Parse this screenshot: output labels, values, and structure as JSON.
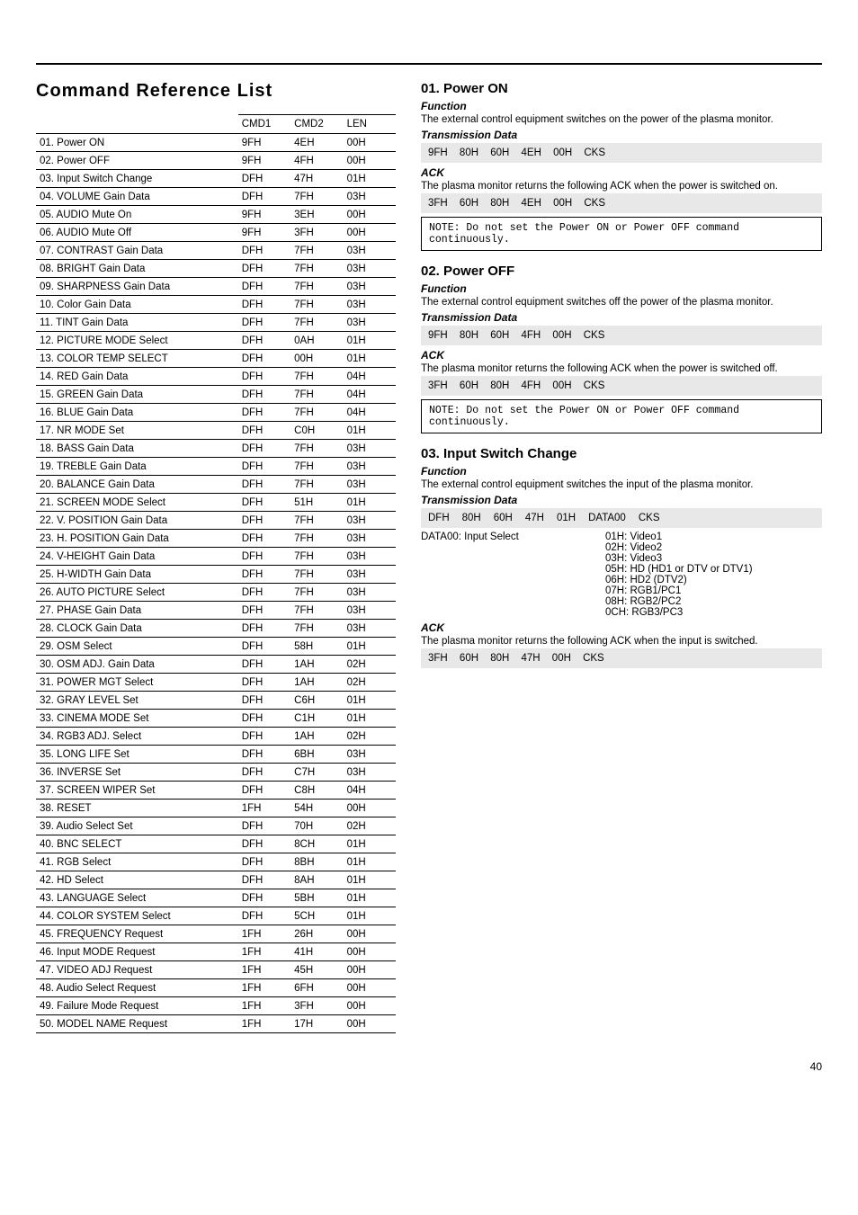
{
  "title": "Command Reference List",
  "table": {
    "headers": [
      "",
      "CMD1",
      "CMD2",
      "LEN"
    ],
    "rows": [
      [
        "01. Power ON",
        "9FH",
        "4EH",
        "00H"
      ],
      [
        "02. Power OFF",
        "9FH",
        "4FH",
        "00H"
      ],
      [
        "03. Input Switch Change",
        "DFH",
        "47H",
        "01H"
      ],
      [
        "04. VOLUME Gain Data",
        "DFH",
        "7FH",
        "03H"
      ],
      [
        "05. AUDIO Mute On",
        "9FH",
        "3EH",
        "00H"
      ],
      [
        "06. AUDIO Mute Off",
        "9FH",
        "3FH",
        "00H"
      ],
      [
        "07. CONTRAST Gain Data",
        "DFH",
        "7FH",
        "03H"
      ],
      [
        "08. BRIGHT Gain Data",
        "DFH",
        "7FH",
        "03H"
      ],
      [
        "09. SHARPNESS Gain Data",
        "DFH",
        "7FH",
        "03H"
      ],
      [
        "10. Color Gain Data",
        "DFH",
        "7FH",
        "03H"
      ],
      [
        "11. TINT Gain Data",
        "DFH",
        "7FH",
        "03H"
      ],
      [
        "12. PICTURE MODE Select",
        "DFH",
        "0AH",
        "01H"
      ],
      [
        "13. COLOR TEMP SELECT",
        "DFH",
        "00H",
        "01H"
      ],
      [
        "14. RED Gain Data",
        "DFH",
        "7FH",
        "04H"
      ],
      [
        "15. GREEN Gain Data",
        "DFH",
        "7FH",
        "04H"
      ],
      [
        "16. BLUE Gain Data",
        "DFH",
        "7FH",
        "04H"
      ],
      [
        "17. NR MODE Set",
        "DFH",
        "C0H",
        "01H"
      ],
      [
        "18. BASS Gain Data",
        "DFH",
        "7FH",
        "03H"
      ],
      [
        "19. TREBLE Gain Data",
        "DFH",
        "7FH",
        "03H"
      ],
      [
        "20. BALANCE Gain Data",
        "DFH",
        "7FH",
        "03H"
      ],
      [
        "21. SCREEN MODE Select",
        "DFH",
        "51H",
        "01H"
      ],
      [
        "22. V. POSITION Gain Data",
        "DFH",
        "7FH",
        "03H"
      ],
      [
        "23. H. POSITION Gain Data",
        "DFH",
        "7FH",
        "03H"
      ],
      [
        "24. V-HEIGHT Gain Data",
        "DFH",
        "7FH",
        "03H"
      ],
      [
        "25. H-WIDTH Gain Data",
        "DFH",
        "7FH",
        "03H"
      ],
      [
        "26. AUTO PICTURE Select",
        "DFH",
        "7FH",
        "03H"
      ],
      [
        "27. PHASE Gain Data",
        "DFH",
        "7FH",
        "03H"
      ],
      [
        "28. CLOCK Gain Data",
        "DFH",
        "7FH",
        "03H"
      ],
      [
        "29. OSM Select",
        "DFH",
        "58H",
        "01H"
      ],
      [
        "30. OSM ADJ. Gain Data",
        "DFH",
        "1AH",
        "02H"
      ],
      [
        "31. POWER MGT Select",
        "DFH",
        "1AH",
        "02H"
      ],
      [
        "32. GRAY LEVEL Set",
        "DFH",
        "C6H",
        "01H"
      ],
      [
        "33. CINEMA MODE Set",
        "DFH",
        "C1H",
        "01H"
      ],
      [
        "34. RGB3 ADJ. Select",
        "DFH",
        "1AH",
        "02H"
      ],
      [
        "35. LONG LIFE Set",
        "DFH",
        "6BH",
        "03H"
      ],
      [
        "36. INVERSE Set",
        "DFH",
        "C7H",
        "03H"
      ],
      [
        "37. SCREEN WIPER Set",
        "DFH",
        "C8H",
        "04H"
      ],
      [
        "38. RESET",
        "1FH",
        "54H",
        "00H"
      ],
      [
        "39. Audio Select Set",
        "DFH",
        "70H",
        "02H"
      ],
      [
        "40. BNC SELECT",
        "DFH",
        "8CH",
        "01H"
      ],
      [
        "41. RGB Select",
        "DFH",
        "8BH",
        "01H"
      ],
      [
        "42. HD Select",
        "DFH",
        "8AH",
        "01H"
      ],
      [
        "43. LANGUAGE Select",
        "DFH",
        "5BH",
        "01H"
      ],
      [
        "44. COLOR SYSTEM Select",
        "DFH",
        "5CH",
        "01H"
      ],
      [
        "45. FREQUENCY Request",
        "1FH",
        "26H",
        "00H"
      ],
      [
        "46. Input MODE Request",
        "1FH",
        "41H",
        "00H"
      ],
      [
        "47. VIDEO ADJ Request",
        "1FH",
        "45H",
        "00H"
      ],
      [
        "48. Audio Select Request",
        "1FH",
        "6FH",
        "00H"
      ],
      [
        "49. Failure Mode Request",
        "1FH",
        "3FH",
        "00H"
      ],
      [
        "50. MODEL NAME Request",
        "1FH",
        "17H",
        "00H"
      ]
    ]
  },
  "sections": [
    {
      "title": "01. Power ON",
      "func_label": "Function",
      "func_text": "The external control equipment switches on the power of the plasma monitor.",
      "tx_label": "Transmission Data",
      "tx_hex": "9FH 80H 60H 4EH 00H CKS",
      "ack_label": "ACK",
      "ack_text": "The plasma monitor returns the following ACK when the power is switched on.",
      "ack_hex": "3FH 60H 80H 4EH 00H CKS",
      "note": "NOTE: Do not set the Power ON or Power OFF command continuously."
    },
    {
      "title": "02. Power OFF",
      "func_label": "Function",
      "func_text": "The external control equipment switches off the power of the plasma monitor.",
      "tx_label": "Transmission Data",
      "tx_hex": "9FH 80H 60H 4FH 00H CKS",
      "ack_label": "ACK",
      "ack_text": "The plasma monitor returns the following ACK when the power is switched off.",
      "ack_hex": "3FH 60H 80H 4FH 00H CKS",
      "note": "NOTE: Do not set the Power ON or Power OFF command continuously."
    },
    {
      "title": "03. Input Switch Change",
      "func_label": "Function",
      "func_text": "The external control equipment switches the input of the plasma monitor.",
      "tx_label": "Transmission Data",
      "tx_wide": [
        "DFH",
        "80H",
        "60H",
        "47H",
        "01H",
        "DATA00",
        "CKS"
      ],
      "data_label": "DATA00: Input Select",
      "data_options": [
        "01H: Video1",
        "02H: Video2",
        "03H: Video3",
        "05H: HD (HD1 or DTV or DTV1)",
        "06H: HD2 (DTV2)",
        "07H: RGB1/PC1",
        "08H: RGB2/PC2",
        "0CH: RGB3/PC3"
      ],
      "ack_label": "ACK",
      "ack_text": "The plasma monitor returns the following ACK when the input is switched.",
      "ack_hex": "3FH 60H 80H 47H 00H CKS"
    }
  ],
  "page_number": "40",
  "colors": {
    "background": "#ffffff",
    "text": "#000000",
    "hex_bg": "#e8e8e8",
    "border": "#000000"
  }
}
